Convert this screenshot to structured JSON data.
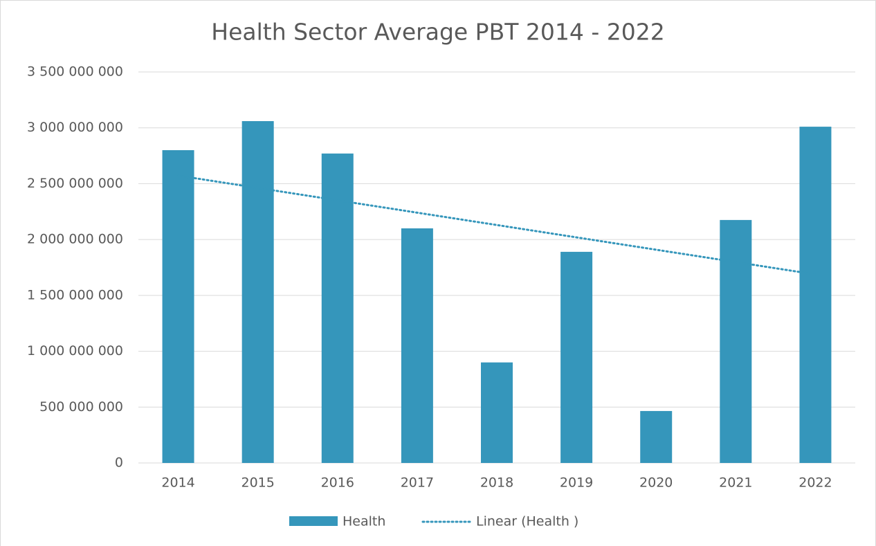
{
  "chart_data": {
    "type": "bar",
    "title": "Health Sector Average PBT 2014 - 2022",
    "categories": [
      "2014",
      "2015",
      "2016",
      "2017",
      "2018",
      "2019",
      "2020",
      "2021",
      "2022"
    ],
    "series": [
      {
        "name": "Health",
        "color": "#3596bb",
        "values": [
          2800000000,
          3060000000,
          2770000000,
          2100000000,
          900000000,
          1890000000,
          465000000,
          2175000000,
          3010000000
        ]
      }
    ],
    "trendline": {
      "type": "linear",
      "name": "Linear (Health )",
      "color": "#3596bb"
    },
    "ylim": [
      0,
      3500000000
    ],
    "yticks": [
      0,
      {
        "value": 500000000,
        "label": "500 000 000"
      },
      {
        "value": 1000000000,
        "label": "1 000 000 000"
      },
      {
        "value": 1500000000,
        "label": "1 500 000 000"
      },
      {
        "value": 2000000000,
        "label": "2 000 000 000"
      },
      {
        "value": 2500000000,
        "label": "2 500 000 000"
      },
      {
        "value": 3000000000,
        "label": "3 000 000 000"
      },
      {
        "value": 3500000000,
        "label": "3 500 000 000"
      }
    ],
    "grid": true,
    "legend": "bottom"
  }
}
